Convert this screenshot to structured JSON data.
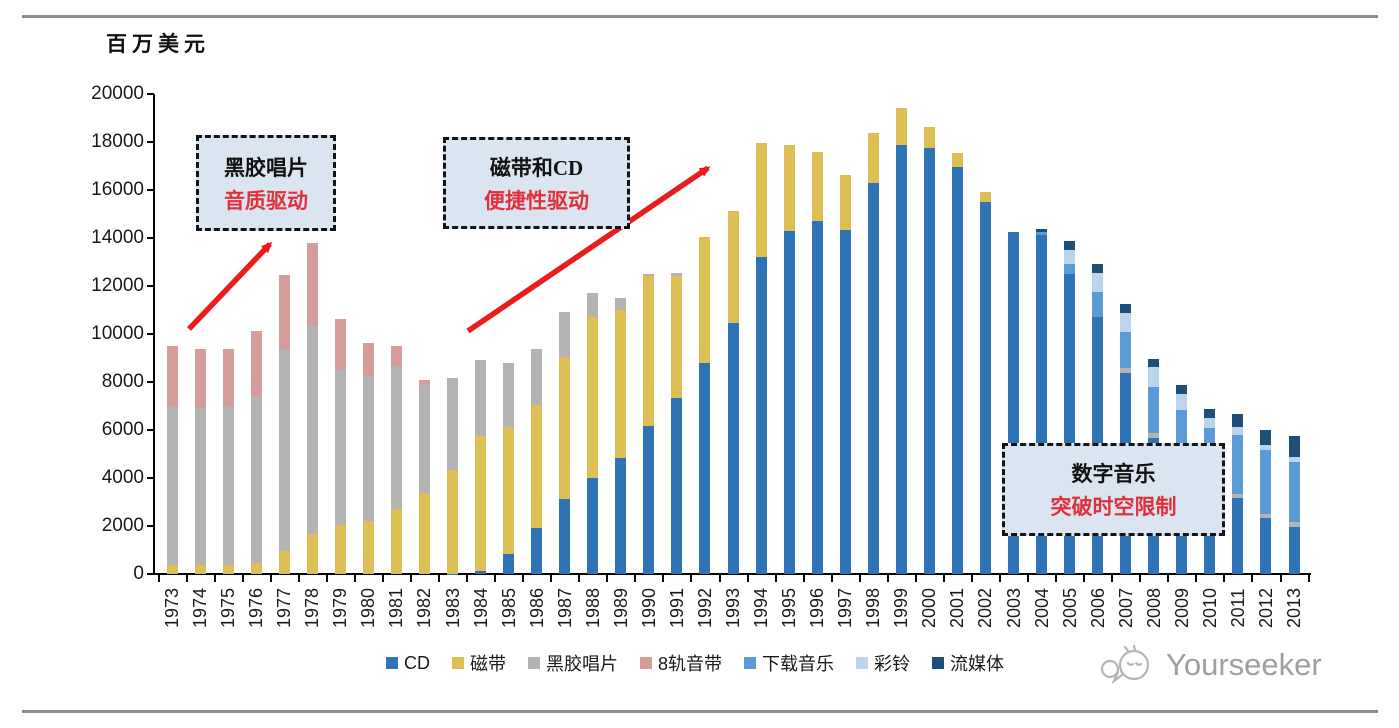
{
  "watermark": {
    "text": "Yourseeker"
  },
  "chart_data": {
    "type": "bar",
    "stacked": true,
    "title": "",
    "unit_label": "百万美元",
    "ylabel": "百万美元",
    "xlabel": "",
    "ylim": [
      0,
      20000
    ],
    "y_ticks": [
      0,
      2000,
      4000,
      6000,
      8000,
      10000,
      12000,
      14000,
      16000,
      18000,
      20000
    ],
    "grid": false,
    "legend_position": "bottom",
    "categories": [
      "1973",
      "1974",
      "1975",
      "1976",
      "1977",
      "1978",
      "1979",
      "1980",
      "1981",
      "1982",
      "1983",
      "1984",
      "1985",
      "1986",
      "1987",
      "1988",
      "1989",
      "1990",
      "1991",
      "1992",
      "1993",
      "1994",
      "1995",
      "1996",
      "1997",
      "1998",
      "1999",
      "2000",
      "2001",
      "2002",
      "2003",
      "2004",
      "2005",
      "2006",
      "2007",
      "2008",
      "2009",
      "2010",
      "2011",
      "2012",
      "2013"
    ],
    "series": [
      {
        "name": "CD",
        "color": "#2e74b5",
        "values": [
          0,
          0,
          0,
          0,
          0,
          0,
          0,
          0,
          0,
          0,
          20,
          140,
          830,
          1900,
          3110,
          4010,
          4820,
          6150,
          7320,
          8800,
          10450,
          13220,
          14290,
          14710,
          14330,
          16300,
          17880,
          17760,
          16970,
          15510,
          14260,
          14110,
          12520,
          10720,
          8360,
          5650,
          4400,
          3600,
          3150,
          2320,
          1970
        ]
      },
      {
        "name": "磁带",
        "color": "#ddbf56",
        "values": [
          375,
          375,
          375,
          445,
          970,
          1670,
          2040,
          2220,
          2700,
          3360,
          4300,
          5610,
          5310,
          5140,
          5920,
          6680,
          6180,
          6250,
          5110,
          5230,
          4680,
          4730,
          3580,
          2890,
          2290,
          2090,
          1550,
          880,
          555,
          390,
          0,
          0,
          0,
          0,
          0,
          0,
          0,
          0,
          0,
          0,
          0
        ]
      },
      {
        "name": "黑胶唱片",
        "color": "#b3b3b3",
        "values": [
          6570,
          6530,
          6595,
          6945,
          8390,
          8680,
          6460,
          6000,
          5970,
          4515,
          3860,
          3150,
          2640,
          2335,
          1900,
          1030,
          490,
          100,
          100,
          0,
          0,
          0,
          0,
          0,
          0,
          0,
          0,
          0,
          0,
          0,
          0,
          0,
          0,
          0,
          210,
          210,
          180,
          180,
          200,
          200,
          200
        ]
      },
      {
        "name": "8轨音带",
        "color": "#d59c9c",
        "values": [
          2555,
          2460,
          2390,
          2735,
          3100,
          3460,
          2110,
          1420,
          830,
          210,
          0,
          0,
          0,
          0,
          0,
          0,
          0,
          0,
          0,
          0,
          0,
          0,
          0,
          0,
          0,
          0,
          0,
          0,
          0,
          0,
          0,
          0,
          0,
          0,
          0,
          0,
          0,
          0,
          0,
          0,
          0
        ]
      },
      {
        "name": "下载音乐",
        "color": "#5b9bd5",
        "values": [
          0,
          0,
          0,
          0,
          0,
          0,
          0,
          0,
          0,
          0,
          0,
          0,
          0,
          0,
          0,
          0,
          0,
          0,
          0,
          0,
          0,
          0,
          0,
          0,
          0,
          0,
          0,
          0,
          0,
          0,
          0,
          150,
          400,
          1040,
          1525,
          1940,
          2250,
          2290,
          2430,
          2640,
          2500
        ]
      },
      {
        "name": "彩铃",
        "color": "#bdd5ec",
        "values": [
          0,
          0,
          0,
          0,
          0,
          0,
          0,
          0,
          0,
          0,
          0,
          0,
          0,
          0,
          0,
          0,
          0,
          0,
          0,
          0,
          0,
          0,
          0,
          0,
          0,
          0,
          0,
          0,
          0,
          0,
          0,
          0,
          600,
          770,
          765,
          835,
          665,
          415,
          350,
          200,
          200
        ]
      },
      {
        "name": "流媒体",
        "color": "#1f4e79",
        "values": [
          0,
          0,
          0,
          0,
          0,
          0,
          0,
          0,
          0,
          0,
          0,
          0,
          0,
          0,
          0,
          0,
          0,
          0,
          0,
          0,
          0,
          0,
          0,
          0,
          0,
          0,
          0,
          0,
          0,
          0,
          0,
          100,
          350,
          375,
          375,
          310,
          375,
          375,
          550,
          625,
          900
        ]
      }
    ],
    "annotations": [
      {
        "line1": "黑胶唱片",
        "line2": "音质驱动"
      },
      {
        "line1": "磁带和CD",
        "line2": "便捷性驱动"
      },
      {
        "line1": "数字音乐",
        "line2": "突破时空限制"
      }
    ],
    "annotation_colors": {
      "box_bg": "#dbe5f2",
      "box_border": "#141414",
      "text": "#111111",
      "red_text": "#e0303a",
      "arrow": "#ed1c1c"
    }
  }
}
